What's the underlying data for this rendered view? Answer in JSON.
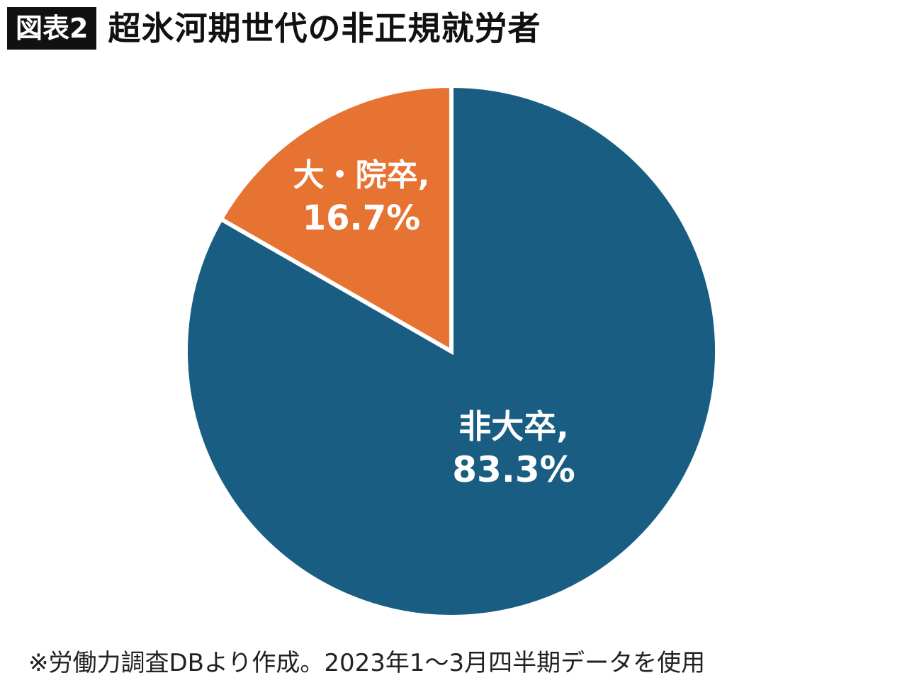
{
  "header": {
    "badge": "図表2"
  },
  "chart_data": {
    "type": "pie",
    "title": "超氷河期世代の非正規就労者",
    "start": "12 o'clock",
    "direction": "clockwise",
    "slices": [
      {
        "label": "非大卒,",
        "value_label": "83.3%",
        "value": 83.3,
        "color": "#195e82"
      },
      {
        "label": "大・院卒,",
        "value_label": "16.7%",
        "value": 16.7,
        "color": "#e67332"
      }
    ],
    "separator_color": "#ffffff"
  },
  "footer": {
    "note": "※労働力調査DBより作成。2023年1～3月四半期データを使用"
  }
}
